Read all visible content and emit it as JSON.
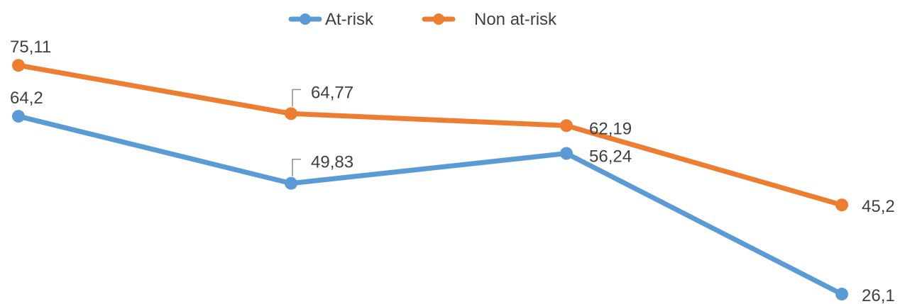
{
  "chart_data": {
    "type": "line",
    "title": "",
    "xlabel": "",
    "ylabel": "",
    "categories": [
      "",
      "",
      "",
      ""
    ],
    "x_axis_visible": false,
    "y_axis_visible": false,
    "grid": false,
    "legend_position": "top-center",
    "series": [
      {
        "name": "At-risk",
        "color": "#5B9BD5",
        "values": [
          64.2,
          49.83,
          56.24,
          26.1
        ],
        "labels": [
          "64,2",
          "49,83",
          "56,24",
          "26,1"
        ]
      },
      {
        "name": "Non at-risk",
        "color": "#ED7D31",
        "values": [
          75.11,
          64.77,
          62.19,
          45.2
        ],
        "labels": [
          "75,11",
          "64,77",
          "62,19",
          "45,2"
        ]
      }
    ]
  }
}
